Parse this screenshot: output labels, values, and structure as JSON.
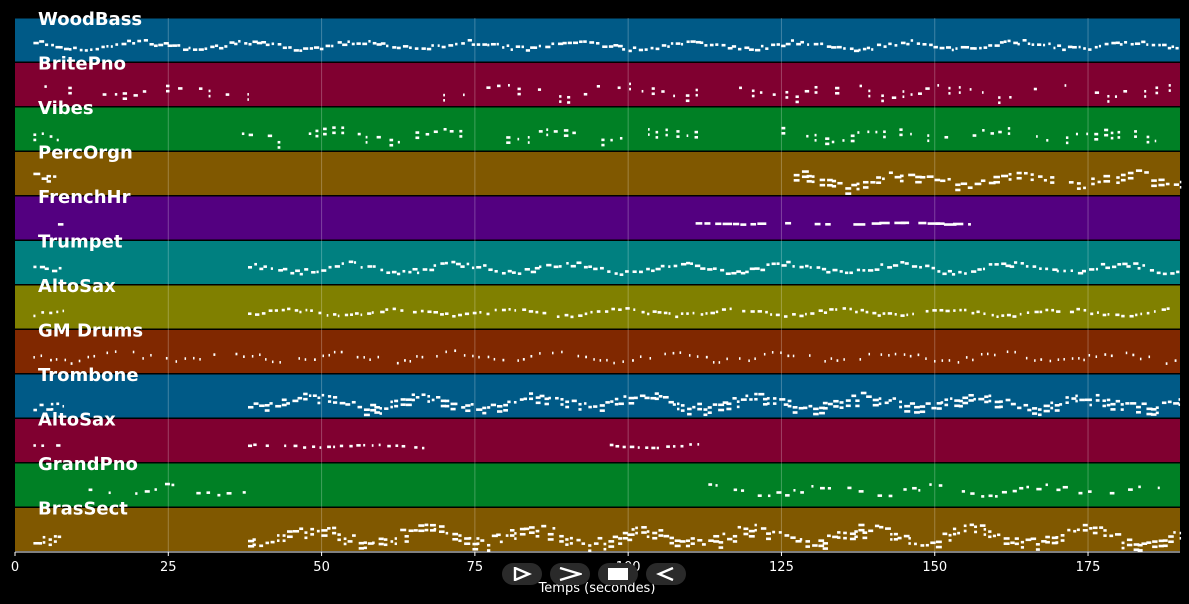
{
  "chart_data": {
    "type": "piano-roll",
    "xlabel": "Temps (secondes)",
    "xlim": [
      0,
      190
    ],
    "xticks": [
      0,
      25,
      50,
      75,
      100,
      125,
      150,
      175
    ],
    "grid": true,
    "tracks": [
      {
        "name": "WoodBass",
        "color": "#005a87",
        "segments": [
          [
            3,
            190
          ]
        ],
        "density": 1.0,
        "pitch_spread": 0.25,
        "note_len": 0.7
      },
      {
        "name": "BritePno",
        "color": "#800030",
        "segments": [
          [
            3,
            38
          ],
          [
            68,
            111
          ],
          [
            111,
            190
          ]
        ],
        "density": 0.5,
        "pitch_spread": 0.35,
        "note_len": 0.6
      },
      {
        "name": "Vibes",
        "color": "#008025",
        "segments": [
          [
            3,
            8
          ],
          [
            37,
            112
          ],
          [
            125,
            186
          ]
        ],
        "density": 0.6,
        "pitch_spread": 0.35,
        "note_len": 0.6
      },
      {
        "name": "PercOrgn",
        "color": "#805800",
        "segments": [
          [
            3,
            8
          ],
          [
            127,
            190
          ]
        ],
        "density": 0.8,
        "pitch_spread": 0.45,
        "note_len": 0.9
      },
      {
        "name": "FrenchHr",
        "color": "#530080",
        "segments": [
          [
            7,
            8
          ],
          [
            111,
            156
          ]
        ],
        "density": 0.6,
        "pitch_spread": 0.05,
        "note_len": 1.6
      },
      {
        "name": "Trumpet",
        "color": "#008080",
        "segments": [
          [
            3,
            8
          ],
          [
            38,
            190
          ]
        ],
        "density": 0.9,
        "pitch_spread": 0.3,
        "note_len": 0.7
      },
      {
        "name": "AltoSax",
        "color": "#808000",
        "segments": [
          [
            3,
            8
          ],
          [
            38,
            190
          ]
        ],
        "density": 0.8,
        "pitch_spread": 0.2,
        "note_len": 0.6
      },
      {
        "name": "GM Drums",
        "color": "#802800",
        "segments": [
          [
            3,
            190
          ]
        ],
        "density": 0.7,
        "pitch_spread": 0.3,
        "note_len": 0.3
      },
      {
        "name": "Trombone",
        "color": "#005a87",
        "segments": [
          [
            3,
            8
          ],
          [
            38,
            190
          ]
        ],
        "density": 1.0,
        "pitch_spread": 0.4,
        "note_len": 0.8
      },
      {
        "name": "AltoSax",
        "color": "#800030",
        "segments": [
          [
            3,
            8
          ],
          [
            38,
            67
          ],
          [
            97,
            112
          ]
        ],
        "density": 0.7,
        "pitch_spread": 0.1,
        "note_len": 0.6
      },
      {
        "name": "GrandPno",
        "color": "#008025",
        "segments": [
          [
            12,
            38
          ],
          [
            112,
            190
          ]
        ],
        "density": 0.6,
        "pitch_spread": 0.3,
        "note_len": 0.7
      },
      {
        "name": "BrasSect",
        "color": "#805800",
        "segments": [
          [
            3,
            8
          ],
          [
            38,
            190
          ]
        ],
        "density": 1.0,
        "pitch_spread": 0.5,
        "note_len": 0.8
      }
    ]
  },
  "controls": [
    {
      "name": "play-icon",
      "label": "Play"
    },
    {
      "name": "forward-icon",
      "label": "Forward"
    },
    {
      "name": "stop-icon",
      "label": "Stop"
    },
    {
      "name": "rewind-icon",
      "label": "Rewind"
    }
  ]
}
